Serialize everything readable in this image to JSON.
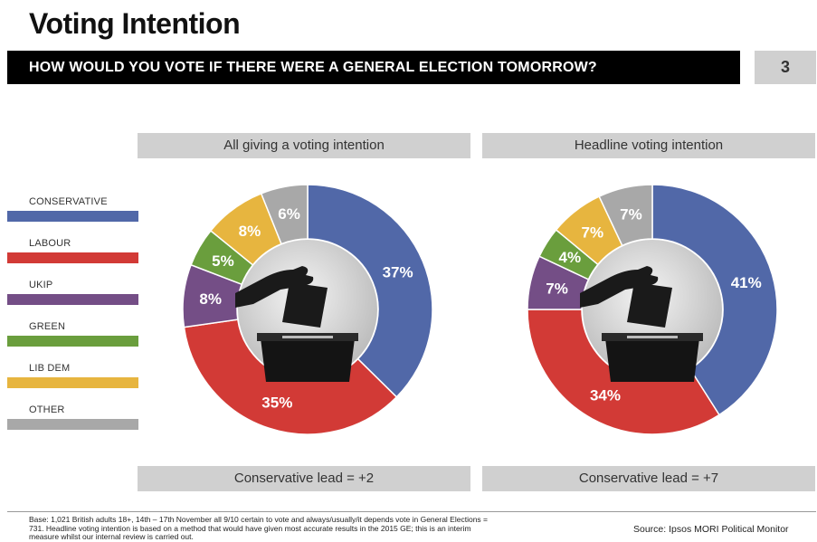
{
  "title": "Voting Intention",
  "banner": "HOW WOULD YOU VOTE IF THERE WERE A GENERAL ELECTION TOMORROW?",
  "page_number": "3",
  "legend": [
    {
      "label": "CONSERVATIVE",
      "color": "#5168a8"
    },
    {
      "label": "LABOUR",
      "color": "#d23a36"
    },
    {
      "label": "UKIP",
      "color": "#744e86"
    },
    {
      "label": "GREEN",
      "color": "#6a9e3d"
    },
    {
      "label": "LIB DEM",
      "color": "#e7b53f"
    },
    {
      "label": "OTHER",
      "color": "#a8a8a8"
    }
  ],
  "chart_data": [
    {
      "type": "pie",
      "title": "All giving a voting intention",
      "categories": [
        "CONSERVATIVE",
        "LABOUR",
        "UKIP",
        "GREEN",
        "LIB DEM",
        "OTHER"
      ],
      "values": [
        37,
        35,
        8,
        5,
        8,
        6
      ],
      "labels": [
        "37%",
        "35%",
        "8%",
        "5%",
        "8%",
        "6%"
      ],
      "footer": "Conservative lead = +2"
    },
    {
      "type": "pie",
      "title": "Headline voting intention",
      "categories": [
        "CONSERVATIVE",
        "LABOUR",
        "UKIP",
        "GREEN",
        "LIB DEM",
        "OTHER"
      ],
      "values": [
        41,
        34,
        7,
        4,
        7,
        7
      ],
      "labels": [
        "41%",
        "34%",
        "7%",
        "4%",
        "7%",
        "7%"
      ],
      "footer": "Conservative lead = +7"
    }
  ],
  "footnote": "Base: 1,021 British adults 18+, 14th – 17th November all 9/10 certain to vote and always/usually/it depends vote in General Elections = 731. Headline voting intention is based on a method that would have given most accurate results in the 2015 GE; this is an interim measure whilst our internal review is carried out.",
  "source": "Source: Ipsos MORI Political Monitor"
}
